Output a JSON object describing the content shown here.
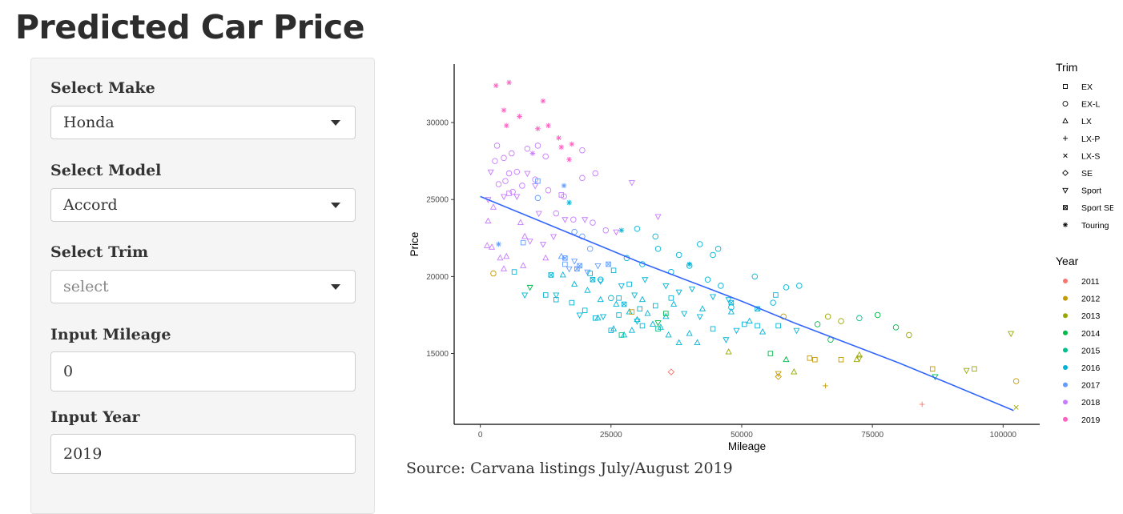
{
  "title": "Predicted Car Price",
  "sidebar": {
    "make": {
      "label": "Select Make",
      "value": "Honda"
    },
    "model": {
      "label": "Select Model",
      "value": "Accord"
    },
    "trim": {
      "label": "Select Trim",
      "value": "select"
    },
    "mileage": {
      "label": "Input Mileage",
      "value": "0"
    },
    "year": {
      "label": "Input Year",
      "value": "2019"
    }
  },
  "source_note": "Source: Carvana listings July/August 2019",
  "chart_data": {
    "type": "scatter",
    "xlabel": "Mileage",
    "ylabel": "Price",
    "xlim": [
      -5000,
      107000
    ],
    "ylim": [
      10400,
      33800
    ],
    "x_ticks": [
      0,
      25000,
      50000,
      75000,
      100000
    ],
    "y_ticks": [
      15000,
      20000,
      25000,
      30000
    ],
    "grid": false,
    "legend_position": "right",
    "trim_legend": {
      "title": "Trim",
      "entries": [
        {
          "name": "EX",
          "shape": "square"
        },
        {
          "name": "EX-L",
          "shape": "circle"
        },
        {
          "name": "LX",
          "shape": "triangle"
        },
        {
          "name": "LX-P",
          "shape": "plus"
        },
        {
          "name": "LX-S",
          "shape": "cross"
        },
        {
          "name": "SE",
          "shape": "diamond"
        },
        {
          "name": "Sport",
          "shape": "triangle-down"
        },
        {
          "name": "Sport SE",
          "shape": "square-cross"
        },
        {
          "name": "Touring",
          "shape": "asterisk"
        }
      ]
    },
    "year_legend": {
      "title": "Year",
      "entries": [
        {
          "name": "2011",
          "color": "#F8766D"
        },
        {
          "name": "2012",
          "color": "#C49A00"
        },
        {
          "name": "2013",
          "color": "#99A800"
        },
        {
          "name": "2014",
          "color": "#00B84A"
        },
        {
          "name": "2015",
          "color": "#00C08B"
        },
        {
          "name": "2016",
          "color": "#00B4D8"
        },
        {
          "name": "2017",
          "color": "#619CFF"
        },
        {
          "name": "2018",
          "color": "#C77CFF"
        },
        {
          "name": "2019",
          "color": "#FF61C3"
        }
      ]
    },
    "trend_line": {
      "color": "#3366FF",
      "points": [
        [
          0,
          25200
        ],
        [
          10000,
          23800
        ],
        [
          20000,
          22400
        ],
        [
          30000,
          21000
        ],
        [
          40000,
          19700
        ],
        [
          50000,
          18400
        ],
        [
          60000,
          17000
        ],
        [
          70000,
          15700
        ],
        [
          80000,
          14400
        ],
        [
          90000,
          13000
        ],
        [
          102000,
          11300
        ]
      ]
    },
    "points": [
      [
        3000,
        32400,
        "2019",
        "Touring"
      ],
      [
        5500,
        32600,
        "2019",
        "Touring"
      ],
      [
        12000,
        31400,
        "2019",
        "Touring"
      ],
      [
        4500,
        30800,
        "2019",
        "Touring"
      ],
      [
        7500,
        30400,
        "2019",
        "Touring"
      ],
      [
        5000,
        29800,
        "2019",
        "Touring"
      ],
      [
        11000,
        29600,
        "2019",
        "Touring"
      ],
      [
        13000,
        29800,
        "2019",
        "Touring"
      ],
      [
        15000,
        29000,
        "2019",
        "Touring"
      ],
      [
        15500,
        28400,
        "2019",
        "Touring"
      ],
      [
        17500,
        28600,
        "2019",
        "Touring"
      ],
      [
        17000,
        27600,
        "2019",
        "Touring"
      ],
      [
        10000,
        28000,
        "2018",
        "Touring"
      ],
      [
        16000,
        25900,
        "2017",
        "Touring"
      ],
      [
        17000,
        24800,
        "2016",
        "Touring"
      ],
      [
        27000,
        23000,
        "2016",
        "Touring"
      ],
      [
        40000,
        20800,
        "2016",
        "Touring"
      ],
      [
        3500,
        22100,
        "2017",
        "Touring"
      ],
      [
        3200,
        28500,
        "2018",
        "EX-L"
      ],
      [
        4500,
        27700,
        "2018",
        "EX-L"
      ],
      [
        6000,
        28000,
        "2018",
        "EX-L"
      ],
      [
        9000,
        28300,
        "2018",
        "EX-L"
      ],
      [
        11000,
        28500,
        "2018",
        "EX-L"
      ],
      [
        19500,
        28200,
        "2018",
        "EX-L"
      ],
      [
        12500,
        27800,
        "2018",
        "EX-L"
      ],
      [
        2800,
        27500,
        "2018",
        "EX-L"
      ],
      [
        5500,
        26700,
        "2018",
        "EX-L"
      ],
      [
        7000,
        26800,
        "2018",
        "EX-L"
      ],
      [
        4800,
        26200,
        "2018",
        "EX-L"
      ],
      [
        3500,
        26000,
        "2018",
        "EX-L"
      ],
      [
        6200,
        25500,
        "2018",
        "EX-L"
      ],
      [
        8000,
        25900,
        "2018",
        "EX-L"
      ],
      [
        10500,
        26300,
        "2018",
        "EX-L"
      ],
      [
        13000,
        25600,
        "2018",
        "EX-L"
      ],
      [
        16000,
        25200,
        "2018",
        "EX-L"
      ],
      [
        22000,
        26700,
        "2018",
        "EX-L"
      ],
      [
        19500,
        26400,
        "2018",
        "EX-L"
      ],
      [
        11000,
        25100,
        "2017",
        "EX-L"
      ],
      [
        21500,
        23500,
        "2018",
        "EX-L"
      ],
      [
        14500,
        24100,
        "2018",
        "EX-L"
      ],
      [
        17800,
        23700,
        "2018",
        "EX-L"
      ],
      [
        24000,
        23000,
        "2018",
        "EX-L"
      ],
      [
        18000,
        22900,
        "2017",
        "EX-L"
      ],
      [
        19500,
        22600,
        "2017",
        "EX-L"
      ],
      [
        21000,
        21800,
        "2017",
        "EX-L"
      ],
      [
        30000,
        23100,
        "2016",
        "EX-L"
      ],
      [
        33500,
        22600,
        "2016",
        "EX-L"
      ],
      [
        34000,
        21800,
        "2016",
        "EX-L"
      ],
      [
        38000,
        21400,
        "2016",
        "EX-L"
      ],
      [
        42000,
        22100,
        "2016",
        "EX-L"
      ],
      [
        44500,
        21400,
        "2016",
        "EX-L"
      ],
      [
        45500,
        21800,
        "2016",
        "EX-L"
      ],
      [
        28000,
        21200,
        "2016",
        "EX-L"
      ],
      [
        31000,
        20800,
        "2016",
        "EX-L"
      ],
      [
        36500,
        20300,
        "2016",
        "EX-L"
      ],
      [
        40000,
        20700,
        "2016",
        "EX-L"
      ],
      [
        43500,
        19800,
        "2016",
        "EX-L"
      ],
      [
        46000,
        19400,
        "2016",
        "EX-L"
      ],
      [
        52500,
        20000,
        "2016",
        "EX-L"
      ],
      [
        58500,
        19300,
        "2016",
        "EX-L"
      ],
      [
        61000,
        19400,
        "2016",
        "EX-L"
      ],
      [
        56000,
        18300,
        "2016",
        "EX-L"
      ],
      [
        48000,
        18000,
        "2016",
        "EX-L"
      ],
      [
        64500,
        16900,
        "2014",
        "EX-L"
      ],
      [
        66500,
        17400,
        "2013",
        "EX-L"
      ],
      [
        72500,
        17300,
        "2015",
        "EX-L"
      ],
      [
        76000,
        17500,
        "2014",
        "EX-L"
      ],
      [
        79500,
        16700,
        "2014",
        "EX-L"
      ],
      [
        82000,
        16200,
        "2013",
        "EX-L"
      ],
      [
        58000,
        17400,
        "2012",
        "EX-L"
      ],
      [
        67000,
        15900,
        "2014",
        "EX-L"
      ],
      [
        69000,
        17100,
        "2013",
        "EX-L"
      ],
      [
        102500,
        13200,
        "2012",
        "EX-L"
      ],
      [
        36500,
        13800,
        "2011",
        "SE"
      ],
      [
        57000,
        13500,
        "2012",
        "SE"
      ],
      [
        2500,
        20200,
        "2012",
        "EX-L"
      ],
      [
        23000,
        19800,
        "2016",
        "EX-L"
      ],
      [
        25000,
        18600,
        "2016",
        "EX-L"
      ],
      [
        1500,
        23600,
        "2018",
        "LX"
      ],
      [
        1300,
        22000,
        "2018",
        "LX"
      ],
      [
        2200,
        21900,
        "2018",
        "LX"
      ],
      [
        3800,
        21200,
        "2018",
        "LX"
      ],
      [
        2500,
        24500,
        "2018",
        "LX"
      ],
      [
        7700,
        23500,
        "2018",
        "LX"
      ],
      [
        8500,
        22600,
        "2018",
        "LX"
      ],
      [
        12500,
        21200,
        "2018",
        "LX"
      ],
      [
        15500,
        21300,
        "2017",
        "LX"
      ],
      [
        5000,
        21300,
        "2018",
        "LX"
      ],
      [
        4500,
        20500,
        "2018",
        "LX"
      ],
      [
        8200,
        20700,
        "2018",
        "LX"
      ],
      [
        15800,
        20100,
        "2016",
        "LX"
      ],
      [
        18000,
        19500,
        "2016",
        "LX"
      ],
      [
        20500,
        19100,
        "2016",
        "LX"
      ],
      [
        23000,
        18500,
        "2016",
        "LX"
      ],
      [
        26000,
        18200,
        "2016",
        "LX"
      ],
      [
        28500,
        17700,
        "2016",
        "LX"
      ],
      [
        30000,
        17200,
        "2016",
        "LX"
      ],
      [
        32000,
        17600,
        "2016",
        "LX"
      ],
      [
        34500,
        16700,
        "2016",
        "LX"
      ],
      [
        36000,
        16200,
        "2016",
        "LX"
      ],
      [
        38000,
        15700,
        "2016",
        "LX"
      ],
      [
        40000,
        16300,
        "2016",
        "LX"
      ],
      [
        22500,
        17300,
        "2016",
        "LX"
      ],
      [
        25500,
        16600,
        "2016",
        "LX"
      ],
      [
        27500,
        16200,
        "2016",
        "LX"
      ],
      [
        29000,
        16500,
        "2016",
        "LX"
      ],
      [
        33000,
        16900,
        "2016",
        "LX"
      ],
      [
        35500,
        17400,
        "2016",
        "LX"
      ],
      [
        41500,
        15700,
        "2016",
        "LX"
      ],
      [
        47500,
        15100,
        "2013",
        "LX"
      ],
      [
        48000,
        17700,
        "2016",
        "LX"
      ],
      [
        51500,
        17100,
        "2016",
        "LX"
      ],
      [
        54000,
        16400,
        "2016",
        "LX"
      ],
      [
        58500,
        14600,
        "2014",
        "LX"
      ],
      [
        60000,
        13800,
        "2013",
        "LX"
      ],
      [
        72500,
        14900,
        "2013",
        "LX"
      ],
      [
        72000,
        14600,
        "2013",
        "LX"
      ],
      [
        31000,
        18500,
        "2016",
        "LX"
      ],
      [
        37000,
        18200,
        "2016",
        "LX"
      ],
      [
        42500,
        17900,
        "2016",
        "LX"
      ],
      [
        2000,
        26800,
        "2018",
        "Sport"
      ],
      [
        1500,
        25000,
        "2018",
        "Sport"
      ],
      [
        4500,
        25200,
        "2018",
        "Sport"
      ],
      [
        7000,
        25200,
        "2018",
        "Sport"
      ],
      [
        9000,
        26700,
        "2018",
        "Sport"
      ],
      [
        10500,
        25900,
        "2018",
        "Sport"
      ],
      [
        11200,
        24100,
        "2018",
        "Sport"
      ],
      [
        16200,
        23700,
        "2018",
        "Sport"
      ],
      [
        20000,
        23700,
        "2018",
        "Sport"
      ],
      [
        26000,
        22900,
        "2018",
        "Sport"
      ],
      [
        29000,
        26100,
        "2018",
        "Sport"
      ],
      [
        34000,
        23900,
        "2018",
        "Sport"
      ],
      [
        14000,
        22600,
        "2018",
        "Sport"
      ],
      [
        12000,
        22100,
        "2018",
        "Sport"
      ],
      [
        9500,
        22300,
        "2018",
        "Sport"
      ],
      [
        18000,
        21000,
        "2017",
        "Sport"
      ],
      [
        22500,
        20700,
        "2017",
        "Sport"
      ],
      [
        17000,
        20500,
        "2017",
        "Sport"
      ],
      [
        20500,
        20300,
        "2017",
        "Sport"
      ],
      [
        23000,
        19700,
        "2016",
        "Sport"
      ],
      [
        27000,
        19400,
        "2016",
        "Sport"
      ],
      [
        29500,
        18800,
        "2016",
        "Sport"
      ],
      [
        31500,
        19800,
        "2016",
        "Sport"
      ],
      [
        35500,
        19400,
        "2016",
        "Sport"
      ],
      [
        38000,
        19000,
        "2016",
        "Sport"
      ],
      [
        40500,
        19200,
        "2016",
        "Sport"
      ],
      [
        44500,
        18700,
        "2016",
        "Sport"
      ],
      [
        47500,
        18500,
        "2016",
        "Sport"
      ],
      [
        9500,
        19300,
        "2014",
        "Sport"
      ],
      [
        8500,
        18800,
        "2016",
        "Sport"
      ],
      [
        19000,
        17500,
        "2016",
        "Sport"
      ],
      [
        23500,
        17400,
        "2016",
        "Sport"
      ],
      [
        30000,
        17100,
        "2016",
        "Sport"
      ],
      [
        34000,
        17000,
        "2014",
        "Sport"
      ],
      [
        42000,
        17400,
        "2016",
        "Sport"
      ],
      [
        47000,
        15900,
        "2016",
        "Sport"
      ],
      [
        49000,
        16500,
        "2016",
        "Sport"
      ],
      [
        60500,
        16500,
        "2016",
        "Sport"
      ],
      [
        57000,
        13700,
        "2012",
        "Sport"
      ],
      [
        72500,
        14700,
        "2013",
        "Sport"
      ],
      [
        87000,
        13500,
        "2014",
        "Sport"
      ],
      [
        93000,
        13900,
        "2013",
        "Sport"
      ],
      [
        101500,
        16300,
        "2013",
        "Sport"
      ],
      [
        14500,
        18800,
        "2016",
        "Sport"
      ],
      [
        39000,
        17600,
        "2016",
        "Sport"
      ],
      [
        6500,
        20300,
        "2016",
        "EX"
      ],
      [
        8200,
        22200,
        "2017",
        "EX"
      ],
      [
        16200,
        20800,
        "2017",
        "EX"
      ],
      [
        21000,
        20200,
        "2016",
        "EX"
      ],
      [
        12500,
        18800,
        "2016",
        "EX"
      ],
      [
        14500,
        18500,
        "2016",
        "EX"
      ],
      [
        17500,
        18300,
        "2016",
        "EX"
      ],
      [
        20000,
        17800,
        "2016",
        "EX"
      ],
      [
        22000,
        17300,
        "2016",
        "EX"
      ],
      [
        25000,
        16500,
        "2016",
        "EX"
      ],
      [
        26500,
        17500,
        "2016",
        "EX"
      ],
      [
        30500,
        17900,
        "2016",
        "EX"
      ],
      [
        33500,
        18100,
        "2016",
        "EX"
      ],
      [
        36500,
        18600,
        "2016",
        "EX"
      ],
      [
        25500,
        20400,
        "2016",
        "EX"
      ],
      [
        28500,
        19500,
        "2016",
        "EX"
      ],
      [
        27000,
        16200,
        "2015",
        "EX"
      ],
      [
        34000,
        16600,
        "2015",
        "EX"
      ],
      [
        35500,
        17600,
        "2014",
        "EX"
      ],
      [
        31000,
        16800,
        "2016",
        "EX"
      ],
      [
        44500,
        16600,
        "2016",
        "EX"
      ],
      [
        50500,
        16900,
        "2016",
        "EX"
      ],
      [
        53000,
        16800,
        "2016",
        "EX"
      ],
      [
        57000,
        16800,
        "2016",
        "EX"
      ],
      [
        55500,
        15000,
        "2014",
        "EX"
      ],
      [
        63000,
        14700,
        "2012",
        "EX"
      ],
      [
        64000,
        14600,
        "2012",
        "EX"
      ],
      [
        69000,
        14600,
        "2012",
        "EX"
      ],
      [
        86500,
        14000,
        "2012",
        "EX"
      ],
      [
        94500,
        14000,
        "2013",
        "EX"
      ],
      [
        5500,
        25400,
        "2018",
        "EX"
      ],
      [
        15500,
        25300,
        "2018",
        "EX"
      ],
      [
        11000,
        26200,
        "2017",
        "EX"
      ],
      [
        29000,
        17700,
        "2012",
        "EX"
      ],
      [
        26500,
        18600,
        "2016",
        "EX"
      ],
      [
        56500,
        18800,
        "2016",
        "EX"
      ],
      [
        24500,
        20800,
        "2017",
        "Sport SE"
      ],
      [
        18500,
        20500,
        "2017",
        "Sport SE"
      ],
      [
        16200,
        21200,
        "2017",
        "Sport SE"
      ],
      [
        21500,
        19800,
        "2016",
        "Sport SE"
      ],
      [
        27500,
        18200,
        "2016",
        "Sport SE"
      ],
      [
        19000,
        20700,
        "2017",
        "Sport SE"
      ],
      [
        48000,
        18300,
        "2016",
        "Sport SE"
      ],
      [
        53000,
        17900,
        "2016",
        "Sport SE"
      ],
      [
        13500,
        20100,
        "2016",
        "Sport SE"
      ],
      [
        66000,
        12900,
        "2012",
        "LX-P"
      ],
      [
        84500,
        11700,
        "2011",
        "LX-P"
      ],
      [
        102500,
        11500,
        "2013",
        "LX-S"
      ]
    ]
  }
}
